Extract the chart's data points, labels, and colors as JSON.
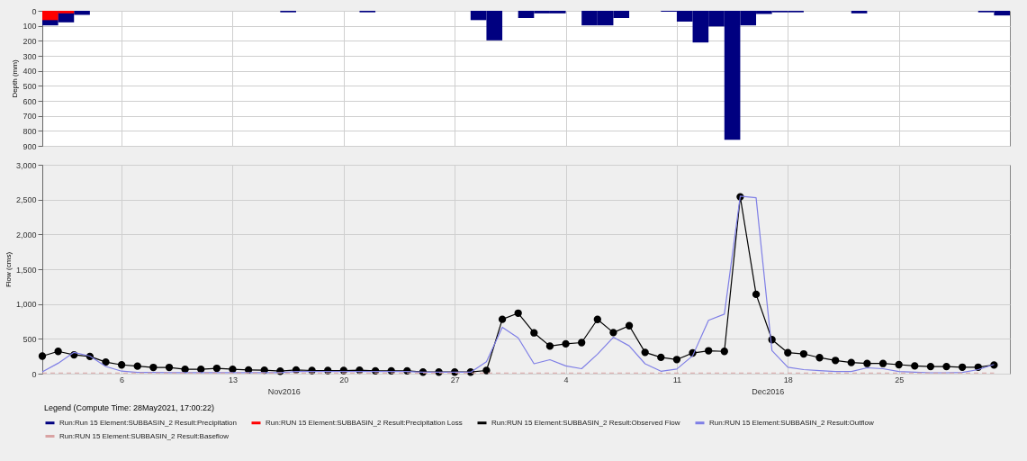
{
  "chart_data": [
    {
      "type": "bar",
      "ylabel": "Depth (mm)",
      "ylim": [
        900,
        0
      ],
      "yticks": [
        0,
        100,
        200,
        300,
        400,
        500,
        600,
        700,
        800,
        900
      ],
      "xlim": [
        "2016-11-01",
        "2017-01-01"
      ],
      "xticks": [
        {
          "value": "2016-11-06",
          "label": null
        },
        {
          "value": "2016-11-13",
          "label": null
        },
        {
          "value": "2016-11-20",
          "label": null
        },
        {
          "value": "2016-11-27",
          "label": null
        },
        {
          "value": "2016-12-04",
          "label": null
        },
        {
          "value": "2016-12-11",
          "label": null
        },
        {
          "value": "2016-12-18",
          "label": null
        },
        {
          "value": "2016-12-25",
          "label": null
        }
      ],
      "tick_labels": "y",
      "grid": true,
      "legend": "bottom",
      "series": [
        {
          "name": "Run:Run 15 Element:SUBBASIN_2 Result:Precipitation",
          "color": "#000080",
          "x": [
            "2016-11-01",
            "2016-11-02",
            "2016-11-03",
            "2016-11-16",
            "2016-11-21",
            "2016-11-28",
            "2016-11-29",
            "2016-12-01",
            "2016-12-02",
            "2016-12-03",
            "2016-12-05",
            "2016-12-06",
            "2016-12-07",
            "2016-12-10",
            "2016-12-11",
            "2016-12-12",
            "2016-12-13",
            "2016-12-14",
            "2016-12-15",
            "2016-12-16",
            "2016-12-17",
            "2016-12-18",
            "2016-12-22",
            "2016-12-30",
            "2016-12-31"
          ],
          "values": [
            97,
            77,
            27,
            10,
            10,
            62,
            197,
            48,
            17,
            17,
            97,
            97,
            48,
            6,
            72,
            211,
            104,
            859,
            97,
            21,
            10,
            10,
            17,
            10,
            31
          ]
        },
        {
          "name": "Run:RUN 15 Element:SUBBASIN_2 Result:Precipitation Loss",
          "color": "#ff0000",
          "x": [
            "2016-11-01",
            "2016-11-02"
          ],
          "values": [
            62,
            17
          ]
        }
      ]
    },
    {
      "type": "line",
      "ylabel": "Flow (cms)",
      "ylim": [
        0,
        3000
      ],
      "yticks": [
        0,
        500,
        {
          "value": 1000,
          "label": "1,000"
        },
        {
          "value": 1500,
          "label": "1,500"
        },
        {
          "value": 2000,
          "label": "2,000"
        },
        {
          "value": 2500,
          "label": "2,500"
        },
        {
          "value": 3000,
          "label": "3,000"
        }
      ],
      "xlim": [
        "2016-11-01",
        "2017-01-01"
      ],
      "xticks": [
        {
          "value": "2016-11-06",
          "label": "6"
        },
        {
          "value": "2016-11-13",
          "label": "13"
        },
        {
          "value": "2016-11-20",
          "label": "20"
        },
        {
          "value": "2016-11-27",
          "label": "27"
        },
        {
          "value": "2016-12-04",
          "label": "4"
        },
        {
          "value": "2016-12-11",
          "label": "11"
        },
        {
          "value": "2016-12-18",
          "label": "18"
        },
        {
          "value": "2016-12-25",
          "label": "25"
        }
      ],
      "grid": true,
      "legend": "bottom",
      "legend_title": "Legend (Compute Time: 28May2021, 17:00:22)",
      "annotations": [
        "Nov2016",
        "Dec2016"
      ],
      "x": [
        "2016-11-01",
        "2016-11-02",
        "2016-11-03",
        "2016-11-04",
        "2016-11-05",
        "2016-11-06",
        "2016-11-07",
        "2016-11-08",
        "2016-11-09",
        "2016-11-10",
        "2016-11-11",
        "2016-11-12",
        "2016-11-13",
        "2016-11-14",
        "2016-11-15",
        "2016-11-16",
        "2016-11-17",
        "2016-11-18",
        "2016-11-19",
        "2016-11-20",
        "2016-11-21",
        "2016-11-22",
        "2016-11-23",
        "2016-11-24",
        "2016-11-25",
        "2016-11-26",
        "2016-11-27",
        "2016-11-28",
        "2016-11-29",
        "2016-11-30",
        "2016-12-01",
        "2016-12-02",
        "2016-12-03",
        "2016-12-04",
        "2016-12-05",
        "2016-12-06",
        "2016-12-07",
        "2016-12-08",
        "2016-12-09",
        "2016-12-10",
        "2016-12-11",
        "2016-12-12",
        "2016-12-13",
        "2016-12-14",
        "2016-12-15",
        "2016-12-16",
        "2016-12-17",
        "2016-12-18",
        "2016-12-19",
        "2016-12-20",
        "2016-12-21",
        "2016-12-22",
        "2016-12-23",
        "2016-12-24",
        "2016-12-25",
        "2016-12-26",
        "2016-12-27",
        "2016-12-28",
        "2016-12-29",
        "2016-12-30",
        "2016-12-31"
      ],
      "series": [
        {
          "name": "Run:RUN 15 Element:SUBBASIN_2 Result:Observed Flow",
          "color": "#000000",
          "marker": "circle",
          "values": [
            252,
            320,
            270,
            248,
            167,
            126,
            108,
            90,
            90,
            63,
            63,
            77,
            63,
            54,
            50,
            36,
            54,
            45,
            45,
            45,
            50,
            40,
            40,
            40,
            23,
            23,
            23,
            23,
            45,
            780,
            869,
            586,
            396,
            428,
            446,
            779,
            590,
            689,
            306,
            234,
            203,
            297,
            329,
            320,
            2540,
            1139,
            488,
            301,
            284,
            230,
            190,
            160,
            146,
            146,
            129,
            111,
            102,
            102,
            93,
            93,
            124
          ]
        },
        {
          "name": "Run:RUN 15 Element:SUBBASIN_2 Result:Outflow",
          "color": "#7f7fe6",
          "values": [
            27,
            150,
            306,
            252,
            104,
            36,
            18,
            18,
            15,
            15,
            15,
            15,
            15,
            15,
            15,
            15,
            30,
            30,
            30,
            30,
            30,
            30,
            30,
            30,
            20,
            20,
            20,
            20,
            170,
            667,
            514,
            142,
            200,
            111,
            71,
            279,
            523,
            399,
            142,
            35,
            66,
            257,
            767,
            855,
            2549,
            2527,
            332,
            93,
            58,
            44,
            31,
            31,
            84,
            71,
            31,
            22,
            13,
            13,
            18,
            58,
            133
          ]
        },
        {
          "name": "Run:RUN 15 Element:SUBBASIN_2 Result:Baseflow",
          "color": "#d9a3a3",
          "line_style": "dashed",
          "x": [
            "2016-11-01",
            "2016-12-31"
          ],
          "values": [
            10,
            10
          ]
        }
      ]
    }
  ]
}
